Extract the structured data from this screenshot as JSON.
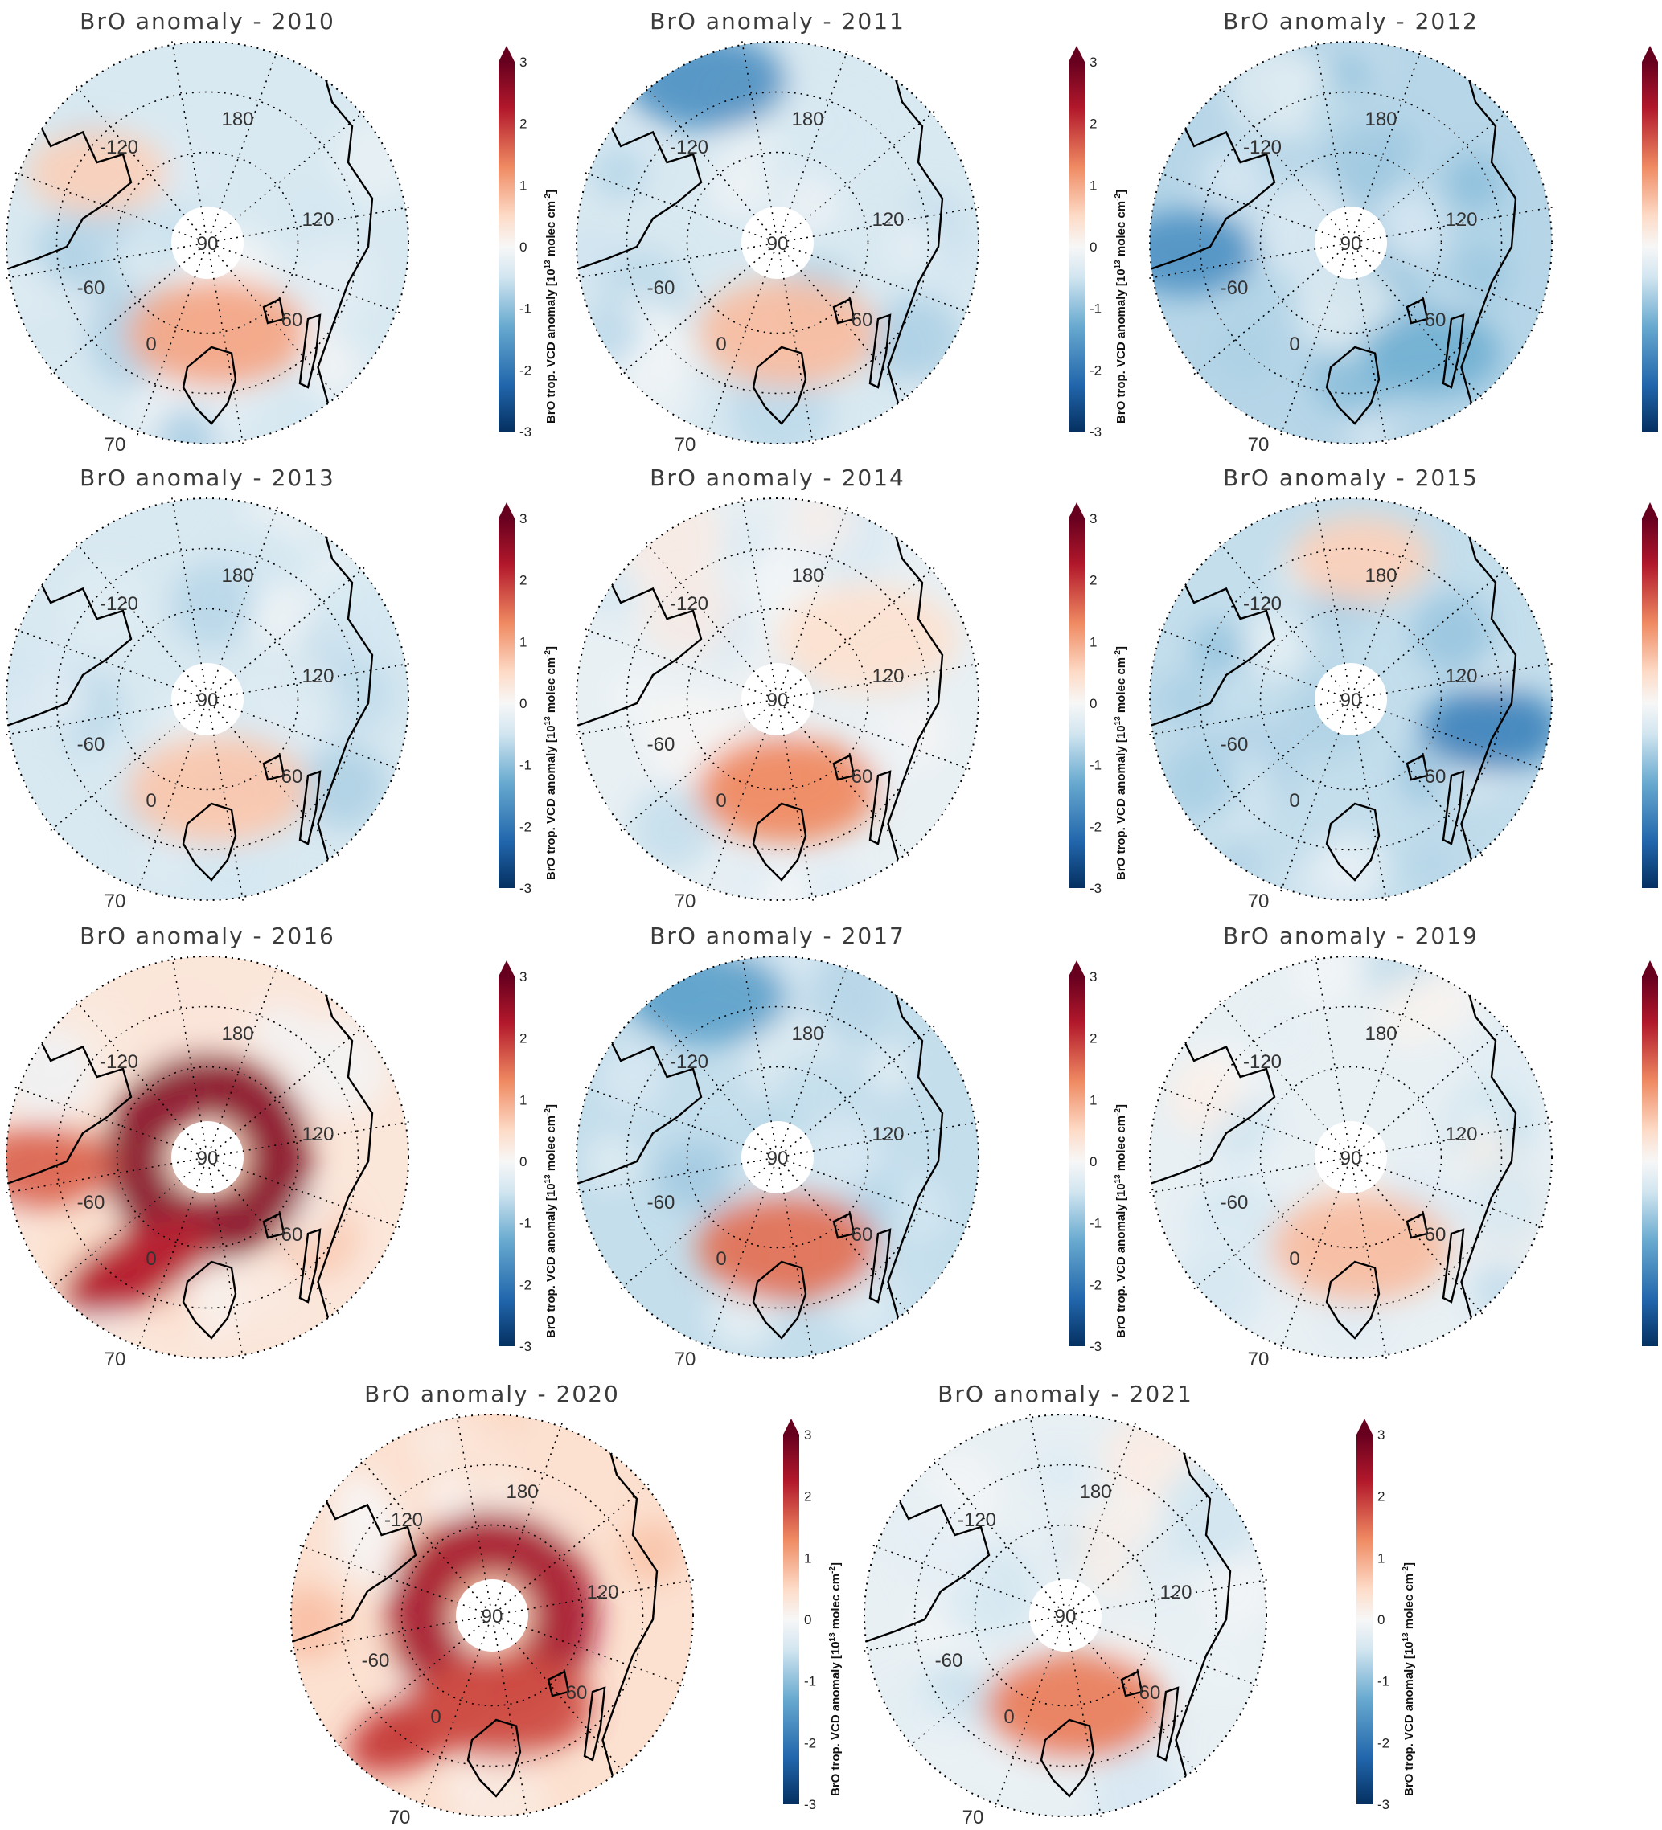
{
  "figure": {
    "title_prefix": "BrO anomaly",
    "colorbar": {
      "label": "BrO trop. VCD anomaly [10",
      "label_exponent": "13",
      "label_unit": " molec cm",
      "label_unit_exponent": "-2",
      "label_close": "]",
      "ticks": [
        "3",
        "2",
        "1",
        "0",
        "-1",
        "-2",
        "-3"
      ],
      "range": [
        -3,
        3
      ],
      "colors": {
        "max": "#67001f",
        "high": "#b2182b",
        "mid_high": "#ef8a62",
        "low_high": "#fddbc7",
        "zero": "#f7f7f7",
        "low_low": "#d1e5f0",
        "mid_low": "#67a9cf",
        "low": "#2166ac",
        "min": "#053061"
      }
    },
    "grid_labels": {
      "lon_180": "180",
      "lon_m120": "-120",
      "lon_120": "120",
      "lon_m60": "-60",
      "lon_0": "0",
      "lon_60": "60",
      "lat_90": "90",
      "lat_70": "70"
    },
    "colors": {
      "land_outline": "#000000",
      "grid": "#000000",
      "background": "#ffffff"
    },
    "panels": [
      {
        "year": "2010",
        "title": "BrO anomaly - 2010",
        "mean_anomaly": -0.4,
        "hotspots": [
          {
            "region": "atlantic-sector",
            "value": 1.0
          },
          {
            "region": "canadian-archipelago",
            "value": 0.6
          }
        ]
      },
      {
        "year": "2011",
        "title": "BrO anomaly - 2011",
        "mean_anomaly": -0.4,
        "hotspots": [
          {
            "region": "atlantic-sector",
            "value": 0.8
          },
          {
            "region": "beaufort-sea",
            "value": -1.6
          }
        ]
      },
      {
        "year": "2012",
        "title": "BrO anomaly - 2012",
        "mean_anomaly": -0.7,
        "hotspots": [
          {
            "region": "hudson-bay",
            "value": -1.6
          },
          {
            "region": "barents-sea",
            "value": -1.2
          }
        ]
      },
      {
        "year": "2013",
        "title": "BrO anomaly - 2013",
        "mean_anomaly": -0.4,
        "hotspots": [
          {
            "region": "atlantic-sector",
            "value": 0.7
          }
        ]
      },
      {
        "year": "2014",
        "title": "BrO anomaly - 2014",
        "mean_anomaly": -0.2,
        "hotspots": [
          {
            "region": "atlantic-sector",
            "value": 1.3
          },
          {
            "region": "siberian-sector",
            "value": 0.4
          }
        ]
      },
      {
        "year": "2015",
        "title": "BrO anomaly - 2015",
        "mean_anomaly": -0.6,
        "hotspots": [
          {
            "region": "siberian-coast",
            "value": -1.8
          },
          {
            "region": "east-siberian-sea",
            "value": 0.6
          }
        ]
      },
      {
        "year": "2016",
        "title": "BrO anomaly - 2016",
        "mean_anomaly": 0.3,
        "hotspots": [
          {
            "region": "pole-ring",
            "value": 2.7
          },
          {
            "region": "hudson-bay",
            "value": 1.6
          }
        ]
      },
      {
        "year": "2017",
        "title": "BrO anomaly - 2017",
        "mean_anomaly": -0.6,
        "hotspots": [
          {
            "region": "beaufort-sea",
            "value": -1.4
          },
          {
            "region": "atlantic-sector",
            "value": 1.5
          }
        ]
      },
      {
        "year": "2019",
        "title": "BrO anomaly - 2019",
        "mean_anomaly": -0.2,
        "hotspots": [
          {
            "region": "atlantic-sector",
            "value": 0.8
          }
        ]
      },
      {
        "year": "2020",
        "title": "BrO anomaly - 2020",
        "mean_anomaly": 0.4,
        "hotspots": [
          {
            "region": "pole-ring",
            "value": 2.4
          },
          {
            "region": "atlantic-sector",
            "value": 1.8
          }
        ]
      },
      {
        "year": "2021",
        "title": "BrO anomaly - 2021",
        "mean_anomaly": -0.2,
        "hotspots": [
          {
            "region": "atlantic-sector",
            "value": 1.4
          }
        ]
      }
    ]
  }
}
